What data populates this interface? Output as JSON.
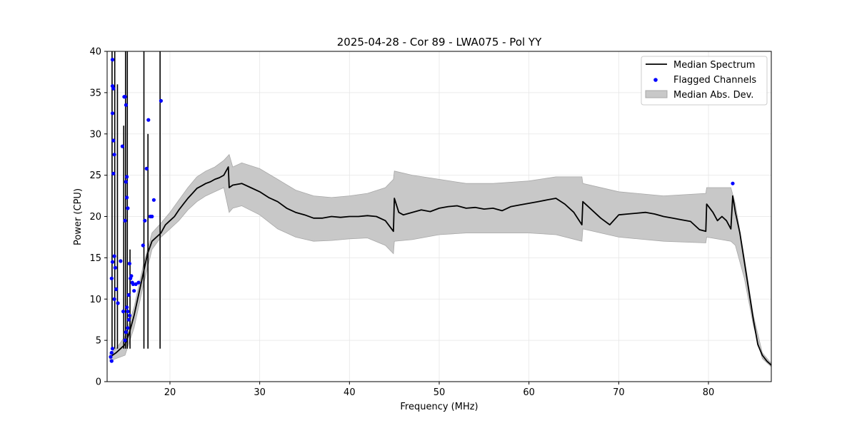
{
  "chart_data": {
    "type": "line",
    "title": "2025-04-28 - Cor 89 - LWA075 - Pol YY",
    "xlabel": "Frequency (MHz)",
    "ylabel": "Power (CPU)",
    "xlim": [
      13,
      87
    ],
    "ylim": [
      0,
      40
    ],
    "xticks": [
      20,
      30,
      40,
      50,
      60,
      70,
      80
    ],
    "yticks": [
      0,
      5,
      10,
      15,
      20,
      25,
      30,
      35,
      40
    ],
    "grid": true,
    "legend_position": "top-right",
    "colors": {
      "median": "#000000",
      "flagged": "#0000ff",
      "band": "#c8c8c8",
      "band_edge": "#a8a8a8"
    },
    "legend": [
      {
        "label": "Median Spectrum",
        "kind": "line"
      },
      {
        "label": "Flagged Channels",
        "kind": "marker"
      },
      {
        "label": "Median Abs. Dev.",
        "kind": "patch"
      }
    ],
    "median_spectrum": {
      "name": "Median Spectrum",
      "x": [
        13.3,
        13.6,
        14.0,
        14.5,
        15.0,
        15.5,
        16.0,
        16.5,
        17.0,
        17.5,
        18.0,
        18.5,
        19.0,
        19.5,
        20.0,
        20.5,
        21.0,
        21.5,
        22.0,
        22.5,
        23.0,
        23.5,
        24.0,
        24.5,
        25.0,
        25.5,
        26.0,
        26.5,
        26.6,
        27.0,
        28.0,
        29.0,
        30.0,
        31.0,
        32.0,
        33.0,
        34.0,
        35.0,
        36.0,
        37.0,
        38.0,
        39.0,
        40.0,
        41.0,
        42.0,
        43.0,
        44.0,
        44.9,
        45.0,
        45.5,
        46.0,
        47.0,
        48.0,
        49.0,
        50.0,
        51.0,
        52.0,
        53.0,
        54.0,
        55.0,
        56.0,
        57.0,
        58.0,
        59.0,
        60.0,
        61.0,
        62.0,
        63.0,
        64.0,
        65.0,
        65.9,
        66.0,
        67.0,
        68.0,
        69.0,
        70.0,
        71.0,
        72.0,
        73.0,
        74.0,
        75.0,
        76.0,
        77.0,
        78.0,
        79.0,
        79.7,
        79.8,
        80.5,
        81.0,
        81.5,
        82.0,
        82.5,
        82.7,
        83.0,
        83.5,
        84.0,
        84.5,
        85.0,
        85.5,
        86.0,
        86.5,
        87.0
      ],
      "y": [
        3.0,
        3.2,
        3.5,
        4.0,
        4.5,
        6.0,
        8.0,
        10.5,
        13.0,
        15.5,
        17.0,
        17.5,
        18.0,
        19.0,
        19.5,
        20.0,
        20.8,
        21.5,
        22.2,
        22.8,
        23.4,
        23.7,
        24.0,
        24.2,
        24.5,
        24.7,
        25.0,
        26.0,
        23.5,
        23.8,
        24.0,
        23.5,
        23.0,
        22.3,
        21.8,
        21.0,
        20.5,
        20.2,
        19.8,
        19.8,
        20.0,
        19.9,
        20.0,
        20.0,
        20.1,
        20.0,
        19.5,
        18.2,
        22.2,
        20.5,
        20.2,
        20.5,
        20.8,
        20.6,
        21.0,
        21.2,
        21.3,
        21.0,
        21.1,
        20.9,
        21.0,
        20.7,
        21.2,
        21.4,
        21.6,
        21.8,
        22.0,
        22.2,
        21.5,
        20.5,
        19.0,
        21.8,
        20.8,
        19.8,
        19.0,
        20.2,
        20.3,
        20.4,
        20.5,
        20.3,
        20.0,
        19.8,
        19.6,
        19.4,
        18.4,
        18.2,
        21.5,
        20.5,
        19.5,
        20.0,
        19.5,
        18.5,
        22.5,
        20.5,
        18.0,
        14.5,
        11.0,
        7.5,
        4.5,
        3.2,
        2.5,
        2.0
      ]
    },
    "mad_band": {
      "name": "Median Abs. Dev.",
      "x": [
        13.3,
        14.0,
        15.0,
        16.0,
        17.0,
        18.0,
        19.0,
        20.0,
        21.0,
        22.0,
        23.0,
        24.0,
        25.0,
        26.0,
        26.6,
        27.0,
        28.0,
        30.0,
        32.0,
        34.0,
        36.0,
        38.0,
        40.0,
        42.0,
        44.0,
        44.9,
        45.0,
        47.0,
        50.0,
        53.0,
        56.0,
        60.0,
        63.0,
        65.9,
        66.0,
        70.0,
        75.0,
        79.7,
        79.8,
        82.5,
        83.0,
        84.0,
        85.0,
        86.0,
        87.0
      ],
      "upper": [
        3.5,
        4.0,
        5.5,
        9.0,
        14.0,
        18.0,
        19.2,
        20.5,
        22.0,
        23.5,
        24.8,
        25.5,
        26.0,
        26.8,
        27.5,
        26.0,
        26.5,
        25.8,
        24.5,
        23.2,
        22.5,
        22.3,
        22.5,
        22.8,
        23.5,
        24.5,
        25.5,
        25.0,
        24.5,
        24.0,
        24.0,
        24.3,
        24.8,
        24.8,
        24.0,
        23.0,
        22.5,
        22.8,
        23.5,
        23.5,
        21.5,
        15.0,
        8.0,
        3.5,
        2.2
      ],
      "lower": [
        2.5,
        2.8,
        3.2,
        6.5,
        11.5,
        16.0,
        17.5,
        18.5,
        19.5,
        20.8,
        21.8,
        22.5,
        23.0,
        23.5,
        20.5,
        21.0,
        21.3,
        20.2,
        18.5,
        17.5,
        17.0,
        17.1,
        17.3,
        17.4,
        16.5,
        15.5,
        17.0,
        17.2,
        17.8,
        18.0,
        18.0,
        18.0,
        17.8,
        17.0,
        18.5,
        17.5,
        17.0,
        16.8,
        17.5,
        17.0,
        16.5,
        12.5,
        6.8,
        2.8,
        1.8
      ]
    },
    "rfi_spikes": [
      {
        "x": 13.55,
        "y": 40.0
      },
      {
        "x": 13.85,
        "y": 40.0
      },
      {
        "x": 14.15,
        "y": 36.0
      },
      {
        "x": 14.85,
        "y": 31.0
      },
      {
        "x": 15.05,
        "y": 40.0
      },
      {
        "x": 15.25,
        "y": 40.0
      },
      {
        "x": 15.55,
        "y": 16.0
      },
      {
        "x": 17.1,
        "y": 40.0
      },
      {
        "x": 17.55,
        "y": 30.0
      },
      {
        "x": 18.9,
        "y": 40.0
      }
    ],
    "flagged_channels": {
      "name": "Flagged Channels",
      "x": [
        13.4,
        13.5,
        13.6,
        13.6,
        13.7,
        13.6,
        13.7,
        13.8,
        13.7,
        13.8,
        13.6,
        13.9,
        14.0,
        13.5,
        13.8,
        14.2,
        14.5,
        14.7,
        14.9,
        15.0,
        15.1,
        15.2,
        15.0,
        15.1,
        15.2,
        15.3,
        15.2,
        15.3,
        15.4,
        15.5,
        15.5,
        15.6,
        15.7,
        15.8,
        15.9,
        16.0,
        16.2,
        16.5,
        17.0,
        17.2,
        17.4,
        17.6,
        17.8,
        18.0,
        18.2,
        19.0,
        82.7,
        13.5,
        13.6,
        15.0,
        14.8,
        15.1,
        15.4,
        15.3
      ],
      "y": [
        3.0,
        3.5,
        39.0,
        35.8,
        35.5,
        32.5,
        29.2,
        27.5,
        25.2,
        15.2,
        14.5,
        13.8,
        11.2,
        12.5,
        10.0,
        9.5,
        14.6,
        28.5,
        34.5,
        34.5,
        33.5,
        24.8,
        19.5,
        24.2,
        22.3,
        21.0,
        9.0,
        8.5,
        7.5,
        8.0,
        14.3,
        12.5,
        12.8,
        12.0,
        11.8,
        11.0,
        11.8,
        12.0,
        16.5,
        19.5,
        25.8,
        31.7,
        20.0,
        20.0,
        22.0,
        34.0,
        24.0,
        2.5,
        4.0,
        5.0,
        8.5,
        6.0,
        10.5,
        6.5
      ]
    }
  }
}
